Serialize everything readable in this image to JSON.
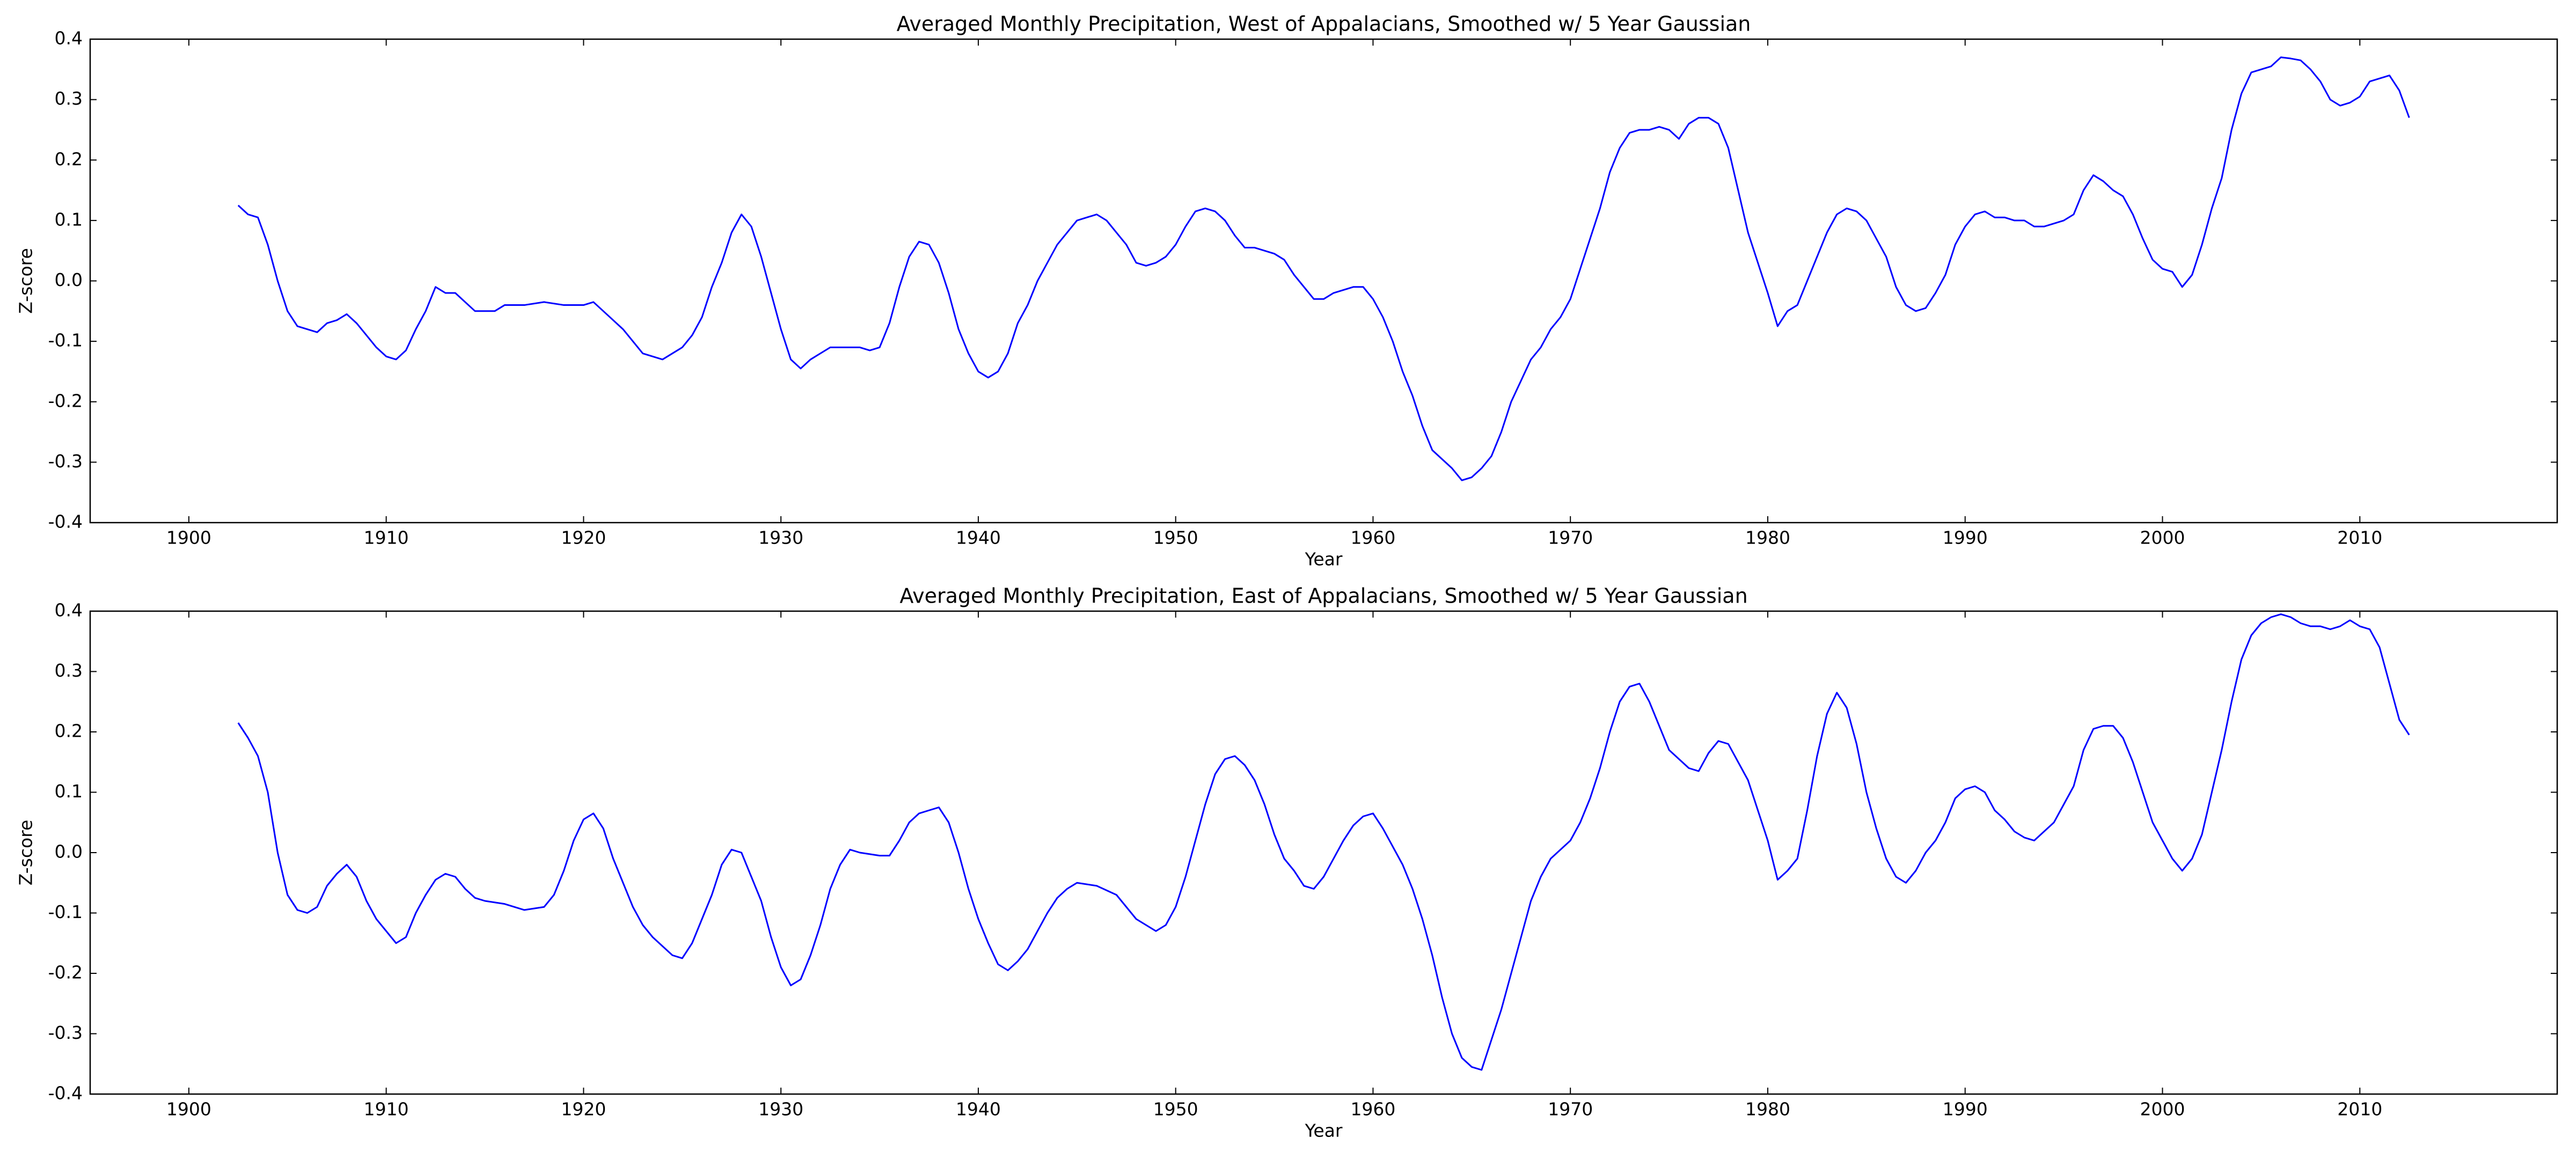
{
  "chart_data": [
    {
      "type": "line",
      "title": "Averaged Monthly Precipitation, West of Appalacians, Smoothed w/ 5 Year Gaussian",
      "x_label": "Year",
      "y_label": "Z-score",
      "xlim": [
        1895,
        2020
      ],
      "xticks": [
        1900,
        1910,
        1920,
        1930,
        1940,
        1950,
        1960,
        1970,
        1980,
        1990,
        2000,
        2010
      ],
      "ylim": [
        -0.4,
        0.4
      ],
      "yticks": [
        -0.4,
        -0.3,
        -0.2,
        -0.1,
        {
          "value": 0,
          "label": "0.0"
        },
        0.1,
        0.2,
        0.3,
        0.4
      ],
      "grid": false,
      "x": [
        1902.5,
        1903,
        1903.5,
        1904,
        1904.5,
        1905,
        1905.5,
        1906,
        1906.5,
        1907,
        1907.5,
        1908,
        1908.5,
        1909,
        1909.5,
        1910,
        1910.5,
        1911,
        1911.5,
        1912,
        1912.5,
        1913,
        1913.5,
        1914,
        1914.5,
        1915,
        1915.5,
        1916,
        1917,
        1918,
        1919,
        1920,
        1920.5,
        1921,
        1922,
        1923,
        1924,
        1925,
        1925.5,
        1926,
        1926.5,
        1927,
        1927.5,
        1928,
        1928.5,
        1929,
        1929.5,
        1930,
        1930.5,
        1931,
        1931.5,
        1932,
        1932.5,
        1933,
        1933.5,
        1934,
        1934.5,
        1935,
        1935.5,
        1936,
        1936.5,
        1937,
        1937.5,
        1938,
        1938.5,
        1939,
        1939.5,
        1940,
        1940.5,
        1941,
        1941.5,
        1942,
        1942.5,
        1943,
        1943.5,
        1944,
        1944.5,
        1945,
        1945.5,
        1946,
        1946.5,
        1947,
        1947.5,
        1948,
        1948.5,
        1949,
        1949.5,
        1950,
        1950.5,
        1951,
        1951.5,
        1952,
        1952.5,
        1953,
        1953.5,
        1954,
        1954.5,
        1955,
        1955.5,
        1956,
        1956.5,
        1957,
        1957.5,
        1958,
        1958.5,
        1959,
        1959.5,
        1960,
        1960.5,
        1961,
        1961.5,
        1962,
        1962.5,
        1963,
        1963.5,
        1964,
        1964.5,
        1965,
        1965.5,
        1966,
        1966.5,
        1967,
        1967.5,
        1968,
        1968.5,
        1969,
        1969.5,
        1970,
        1970.5,
        1971,
        1971.5,
        1972,
        1972.5,
        1973,
        1973.5,
        1974,
        1974.5,
        1975,
        1975.5,
        1976,
        1976.5,
        1977,
        1977.5,
        1978,
        1978.5,
        1979,
        1979.5,
        1980,
        1980.5,
        1981,
        1981.5,
        1982,
        1982.5,
        1983,
        1983.5,
        1984,
        1984.5,
        1985,
        1985.5,
        1986,
        1986.5,
        1987,
        1987.5,
        1988,
        1988.5,
        1989,
        1989.5,
        1990,
        1990.5,
        1991,
        1991.5,
        1992,
        1992.5,
        1993,
        1993.5,
        1994,
        1994.5,
        1995,
        1995.5,
        1996,
        1996.5,
        1997,
        1997.5,
        1998,
        1998.5,
        1999,
        1999.5,
        2000,
        2000.5,
        2001,
        2001.5,
        2002,
        2002.5,
        2003,
        2003.5,
        2004,
        2004.5,
        2005,
        2005.5,
        2006,
        2006.5,
        2007,
        2007.5,
        2008,
        2008.5,
        2009,
        2009.5,
        2010,
        2010.5,
        2011,
        2011.5,
        2012,
        2012.5
      ],
      "series": [
        {
          "color": "#0000ff",
          "values": [
            0.125,
            0.11,
            0.105,
            0.06,
            0.0,
            -0.05,
            -0.075,
            -0.08,
            -0.085,
            -0.07,
            -0.065,
            -0.055,
            -0.07,
            -0.09,
            -0.11,
            -0.125,
            -0.13,
            -0.115,
            -0.08,
            -0.05,
            -0.01,
            -0.02,
            -0.02,
            -0.035,
            -0.05,
            -0.05,
            -0.05,
            -0.04,
            -0.04,
            -0.035,
            -0.04,
            -0.04,
            -0.035,
            -0.05,
            -0.08,
            -0.12,
            -0.13,
            -0.11,
            -0.09,
            -0.06,
            -0.01,
            0.03,
            0.08,
            0.11,
            0.09,
            0.04,
            -0.02,
            -0.08,
            -0.13,
            -0.145,
            -0.13,
            -0.12,
            -0.11,
            -0.11,
            -0.11,
            -0.11,
            -0.115,
            -0.11,
            -0.07,
            -0.01,
            0.04,
            0.065,
            0.06,
            0.03,
            -0.02,
            -0.08,
            -0.12,
            -0.15,
            -0.16,
            -0.15,
            -0.12,
            -0.07,
            -0.04,
            0.0,
            0.03,
            0.06,
            0.08,
            0.1,
            0.105,
            0.11,
            0.1,
            0.08,
            0.06,
            0.03,
            0.025,
            0.03,
            0.04,
            0.06,
            0.09,
            0.115,
            0.12,
            0.115,
            0.1,
            0.075,
            0.055,
            0.055,
            0.05,
            0.045,
            0.035,
            0.01,
            -0.01,
            -0.03,
            -0.03,
            -0.02,
            -0.015,
            -0.01,
            -0.01,
            -0.03,
            -0.06,
            -0.1,
            -0.15,
            -0.19,
            -0.24,
            -0.28,
            -0.295,
            -0.31,
            -0.33,
            -0.325,
            -0.31,
            -0.29,
            -0.25,
            -0.2,
            -0.165,
            -0.13,
            -0.11,
            -0.08,
            -0.06,
            -0.03,
            0.02,
            0.07,
            0.12,
            0.18,
            0.22,
            0.245,
            0.25,
            0.25,
            0.255,
            0.25,
            0.235,
            0.26,
            0.27,
            0.27,
            0.26,
            0.22,
            0.15,
            0.08,
            0.03,
            -0.02,
            -0.075,
            -0.05,
            -0.04,
            0.0,
            0.04,
            0.08,
            0.11,
            0.12,
            0.115,
            0.1,
            0.07,
            0.04,
            -0.01,
            -0.04,
            -0.05,
            -0.045,
            -0.02,
            0.01,
            0.06,
            0.09,
            0.11,
            0.115,
            0.105,
            0.105,
            0.1,
            0.1,
            0.09,
            0.09,
            0.095,
            0.1,
            0.11,
            0.15,
            0.175,
            0.165,
            0.15,
            0.14,
            0.11,
            0.07,
            0.035,
            0.02,
            0.015,
            -0.01,
            0.01,
            0.06,
            0.12,
            0.17,
            0.25,
            0.31,
            0.345,
            0.35,
            0.355,
            0.37,
            0.368,
            0.365,
            0.35,
            0.33,
            0.3,
            0.29,
            0.295,
            0.305,
            0.33,
            0.335,
            0.34,
            0.315,
            0.27
          ]
        }
      ]
    },
    {
      "type": "line",
      "title": "Averaged Monthly Precipitation, East of Appalacians, Smoothed w/ 5 Year Gaussian",
      "x_label": "Year",
      "y_label": "Z-score",
      "xlim": [
        1895,
        2020
      ],
      "xticks": [
        1900,
        1910,
        1920,
        1930,
        1940,
        1950,
        1960,
        1970,
        1980,
        1990,
        2000,
        2010
      ],
      "ylim": [
        -0.4,
        0.4
      ],
      "yticks": [
        -0.4,
        -0.3,
        -0.2,
        -0.1,
        {
          "value": 0,
          "label": "0.0"
        },
        0.1,
        0.2,
        0.3,
        0.4
      ],
      "grid": false,
      "x": [
        1902.5,
        1903,
        1903.5,
        1904,
        1904.5,
        1905,
        1905.5,
        1906,
        1906.5,
        1907,
        1907.5,
        1908,
        1908.5,
        1909,
        1909.5,
        1910,
        1910.5,
        1911,
        1911.5,
        1912,
        1912.5,
        1913,
        1913.5,
        1914,
        1914.5,
        1915,
        1916,
        1917,
        1918,
        1918.5,
        1919,
        1919.5,
        1920,
        1920.5,
        1921,
        1921.5,
        1922,
        1922.5,
        1923,
        1923.5,
        1924,
        1924.5,
        1925,
        1925.5,
        1926,
        1926.5,
        1927,
        1927.5,
        1928,
        1928.5,
        1929,
        1929.5,
        1930,
        1930.5,
        1931,
        1931.5,
        1932,
        1932.5,
        1933,
        1933.5,
        1934,
        1935,
        1935.5,
        1936,
        1936.5,
        1937,
        1937.5,
        1938,
        1938.5,
        1939,
        1939.5,
        1940,
        1940.5,
        1941,
        1941.5,
        1942,
        1942.5,
        1943,
        1943.5,
        1944,
        1944.5,
        1945,
        1946,
        1947,
        1947.5,
        1948,
        1948.5,
        1949,
        1949.5,
        1950,
        1950.5,
        1951,
        1951.5,
        1952,
        1952.5,
        1953,
        1953.5,
        1954,
        1954.5,
        1955,
        1955.5,
        1956,
        1956.5,
        1957,
        1957.5,
        1958,
        1958.5,
        1959,
        1959.5,
        1960,
        1960.5,
        1961,
        1961.5,
        1962,
        1962.5,
        1963,
        1963.5,
        1964,
        1964.5,
        1965,
        1965.5,
        1966,
        1966.5,
        1967,
        1967.5,
        1968,
        1968.5,
        1969,
        1969.5,
        1970,
        1970.5,
        1971,
        1971.5,
        1972,
        1972.5,
        1973,
        1973.5,
        1974,
        1974.5,
        1975,
        1975.5,
        1976,
        1976.5,
        1977,
        1977.5,
        1978,
        1978.5,
        1979,
        1979.5,
        1980,
        1980.5,
        1981,
        1981.5,
        1982,
        1982.5,
        1983,
        1983.5,
        1984,
        1984.5,
        1985,
        1985.5,
        1986,
        1986.5,
        1987,
        1987.5,
        1988,
        1988.5,
        1989,
        1989.5,
        1990,
        1990.5,
        1991,
        1991.5,
        1992,
        1992.5,
        1993,
        1993.5,
        1994,
        1994.5,
        1995,
        1995.5,
        1996,
        1996.5,
        1997,
        1997.5,
        1998,
        1998.5,
        1999,
        1999.5,
        2000,
        2000.5,
        2001,
        2001.5,
        2002,
        2002.5,
        2003,
        2003.5,
        2004,
        2004.5,
        2005,
        2005.5,
        2006,
        2006.5,
        2007,
        2007.5,
        2008,
        2008.5,
        2009,
        2009.5,
        2010,
        2010.5,
        2011,
        2011.5,
        2012,
        2012.5
      ],
      "series": [
        {
          "color": "#0000ff",
          "values": [
            0.215,
            0.19,
            0.16,
            0.1,
            0.0,
            -0.07,
            -0.095,
            -0.1,
            -0.09,
            -0.055,
            -0.035,
            -0.02,
            -0.04,
            -0.08,
            -0.11,
            -0.13,
            -0.15,
            -0.14,
            -0.1,
            -0.07,
            -0.045,
            -0.035,
            -0.04,
            -0.06,
            -0.075,
            -0.08,
            -0.085,
            -0.095,
            -0.09,
            -0.07,
            -0.03,
            0.02,
            0.055,
            0.065,
            0.04,
            -0.01,
            -0.05,
            -0.09,
            -0.12,
            -0.14,
            -0.155,
            -0.17,
            -0.175,
            -0.15,
            -0.11,
            -0.07,
            -0.02,
            0.005,
            0.0,
            -0.04,
            -0.08,
            -0.14,
            -0.19,
            -0.22,
            -0.21,
            -0.17,
            -0.12,
            -0.06,
            -0.02,
            0.005,
            0.0,
            -0.005,
            -0.005,
            0.02,
            0.05,
            0.065,
            0.07,
            0.075,
            0.05,
            0.0,
            -0.06,
            -0.11,
            -0.15,
            -0.185,
            -0.195,
            -0.18,
            -0.16,
            -0.13,
            -0.1,
            -0.075,
            -0.06,
            -0.05,
            -0.055,
            -0.07,
            -0.09,
            -0.11,
            -0.12,
            -0.13,
            -0.12,
            -0.09,
            -0.04,
            0.02,
            0.08,
            0.13,
            0.155,
            0.16,
            0.145,
            0.12,
            0.08,
            0.03,
            -0.01,
            -0.03,
            -0.055,
            -0.06,
            -0.04,
            -0.01,
            0.02,
            0.045,
            0.06,
            0.065,
            0.04,
            0.01,
            -0.02,
            -0.06,
            -0.11,
            -0.17,
            -0.24,
            -0.3,
            -0.34,
            -0.355,
            -0.36,
            -0.31,
            -0.26,
            -0.2,
            -0.14,
            -0.08,
            -0.04,
            -0.01,
            0.005,
            0.02,
            0.05,
            0.09,
            0.14,
            0.2,
            0.25,
            0.275,
            0.28,
            0.25,
            0.21,
            0.17,
            0.155,
            0.14,
            0.135,
            0.165,
            0.185,
            0.18,
            0.15,
            0.12,
            0.07,
            0.02,
            -0.045,
            -0.03,
            -0.01,
            0.07,
            0.16,
            0.23,
            0.265,
            0.24,
            0.18,
            0.1,
            0.04,
            -0.01,
            -0.04,
            -0.05,
            -0.03,
            0.0,
            0.02,
            0.05,
            0.09,
            0.105,
            0.11,
            0.1,
            0.07,
            0.055,
            0.035,
            0.025,
            0.02,
            0.035,
            0.05,
            0.08,
            0.11,
            0.17,
            0.205,
            0.21,
            0.21,
            0.19,
            0.15,
            0.1,
            0.05,
            0.02,
            -0.01,
            -0.03,
            -0.01,
            0.03,
            0.1,
            0.17,
            0.25,
            0.32,
            0.36,
            0.38,
            0.39,
            0.395,
            0.39,
            0.38,
            0.375,
            0.375,
            0.37,
            0.375,
            0.385,
            0.375,
            0.37,
            0.34,
            0.28,
            0.22,
            0.195
          ]
        }
      ]
    }
  ]
}
